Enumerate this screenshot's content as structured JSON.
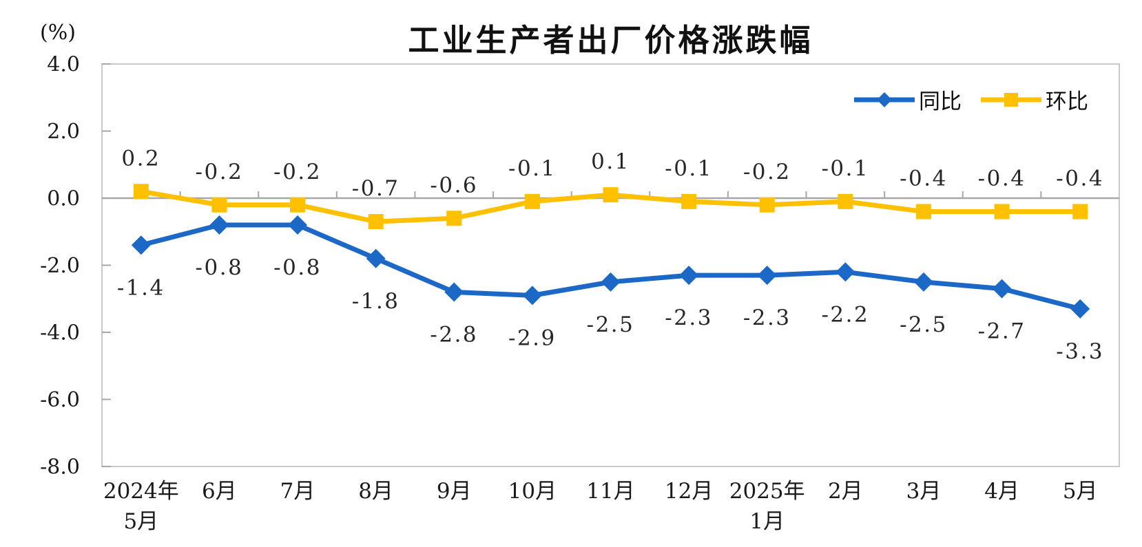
{
  "title": "工业生产者出厂价格涨跌幅",
  "unit_label": "(%)",
  "colors": {
    "yoy_blue": "#1B68C6",
    "mom_yellow": "#FFC000",
    "axis_gray": "#A6A6A6",
    "border_gray": "#C9C9C9",
    "text_dark": "#1A1A1A"
  },
  "chart_data": {
    "type": "line",
    "title": "工业生产者出厂价格涨跌幅",
    "unit": "%",
    "categories": [
      "2024年5月",
      "6月",
      "7月",
      "8月",
      "9月",
      "10月",
      "11月",
      "12月",
      "2025年1月",
      "2月",
      "3月",
      "4月",
      "5月"
    ],
    "series": [
      {
        "name": "同比",
        "marker": "diamond",
        "color": "#1B68C6",
        "label_position": "below",
        "values": [
          -1.4,
          -0.8,
          -0.8,
          -1.8,
          -2.8,
          -2.9,
          -2.5,
          -2.3,
          -2.3,
          -2.2,
          -2.5,
          -2.7,
          -3.3
        ]
      },
      {
        "name": "环比",
        "marker": "square",
        "color": "#FFC000",
        "label_position": "above",
        "values": [
          0.2,
          -0.2,
          -0.2,
          -0.7,
          -0.6,
          -0.1,
          0.1,
          -0.1,
          -0.2,
          -0.1,
          -0.4,
          -0.4,
          -0.4
        ]
      }
    ],
    "ylim": [
      -8,
      4
    ],
    "y_ticks": [
      4.0,
      2.0,
      0.0,
      -2.0,
      -4.0,
      -6.0,
      -8.0
    ],
    "grid": false,
    "data_labels": true,
    "legend_position": "top-right"
  }
}
